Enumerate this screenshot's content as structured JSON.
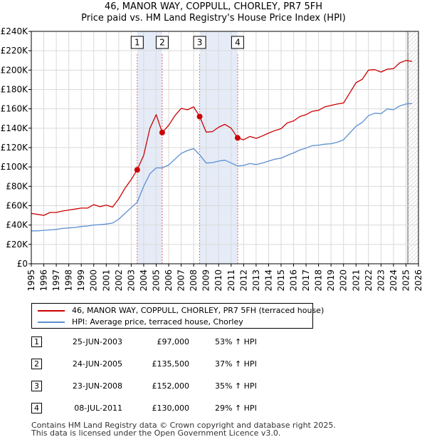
{
  "title_line1": "46, MANOR WAY, COPPULL, CHORLEY, PR7 5FH",
  "title_line2": "Price paid vs. HM Land Registry's House Price Index (HPI)",
  "chart_data": {
    "type": "line",
    "title": "46, MANOR WAY, COPPULL, CHORLEY, PR7 5FH — Price paid vs. HM Land Registry's House Price Index (HPI)",
    "xlim": [
      1995,
      2026
    ],
    "ylim": [
      0,
      240000
    ],
    "x_ticks": [
      1995,
      1996,
      1997,
      1998,
      1999,
      2000,
      2001,
      2002,
      2003,
      2004,
      2005,
      2006,
      2007,
      2008,
      2009,
      2010,
      2011,
      2012,
      2013,
      2014,
      2015,
      2016,
      2017,
      2018,
      2019,
      2020,
      2021,
      2022,
      2023,
      2024,
      2025,
      2026
    ],
    "y_ticks": [
      0,
      20000,
      40000,
      60000,
      80000,
      100000,
      120000,
      140000,
      160000,
      180000,
      200000,
      220000,
      240000
    ],
    "y_tick_labels": [
      "£0",
      "£20K",
      "£40K",
      "£60K",
      "£80K",
      "£100K",
      "£120K",
      "£140K",
      "£160K",
      "£180K",
      "£200K",
      "£220K",
      "£240K"
    ],
    "grid": true,
    "shaded_periods": [
      [
        2003.48,
        2005.48
      ],
      [
        2008.48,
        2011.52
      ]
    ],
    "forecast_start": 2025.15,
    "series": [
      {
        "name": "46, MANOR WAY, COPPULL, CHORLEY, PR7 5FH (terraced house)",
        "color": "#cc0000",
        "x": [
          1995.0,
          1995.5,
          1996.0,
          1996.5,
          1997.0,
          1997.5,
          1998.0,
          1998.5,
          1999.0,
          1999.5,
          2000.0,
          2000.5,
          2001.0,
          2001.5,
          2002.0,
          2002.5,
          2003.0,
          2003.48,
          2004.0,
          2004.5,
          2005.0,
          2005.48,
          2006.0,
          2006.5,
          2007.0,
          2007.5,
          2008.0,
          2008.48,
          2009.0,
          2009.5,
          2010.0,
          2010.5,
          2011.0,
          2011.52,
          2012.0,
          2012.5,
          2013.0,
          2013.5,
          2014.0,
          2014.5,
          2015.0,
          2015.5,
          2016.0,
          2016.5,
          2017.0,
          2017.5,
          2018.0,
          2018.5,
          2019.0,
          2019.5,
          2020.0,
          2020.5,
          2021.0,
          2021.5,
          2022.0,
          2022.5,
          2023.0,
          2023.5,
          2024.0,
          2024.5,
          2025.0,
          2025.5
        ],
        "values": [
          52000,
          51000,
          50000,
          53000,
          53000,
          54500,
          55500,
          56500,
          57500,
          57500,
          61000,
          59000,
          60500,
          58500,
          67000,
          78000,
          87000,
          97000,
          112000,
          140000,
          154000,
          135500,
          143000,
          153000,
          160500,
          159000,
          162000,
          152000,
          136000,
          136500,
          141000,
          144000,
          140000,
          130000,
          128000,
          131500,
          129500,
          132000,
          135000,
          137500,
          139500,
          145500,
          147500,
          152000,
          154000,
          157500,
          158500,
          162000,
          163500,
          165000,
          166000,
          176500,
          187000,
          190500,
          200000,
          200500,
          198000,
          201000,
          201500,
          207500,
          210000,
          209000
        ]
      },
      {
        "name": "HPI: Average price, terraced house, Chorley",
        "color": "#5b8fd0",
        "x": [
          1995.0,
          1995.5,
          1996.0,
          1996.5,
          1997.0,
          1997.5,
          1998.0,
          1998.5,
          1999.0,
          1999.5,
          2000.0,
          2000.5,
          2001.0,
          2001.5,
          2002.0,
          2002.5,
          2003.0,
          2003.48,
          2004.0,
          2004.5,
          2005.0,
          2005.48,
          2006.0,
          2006.5,
          2007.0,
          2007.5,
          2008.0,
          2008.48,
          2009.0,
          2009.5,
          2010.0,
          2010.5,
          2011.0,
          2011.52,
          2012.0,
          2012.5,
          2013.0,
          2013.5,
          2014.0,
          2014.5,
          2015.0,
          2015.5,
          2016.0,
          2016.5,
          2017.0,
          2017.5,
          2018.0,
          2018.5,
          2019.0,
          2019.5,
          2020.0,
          2020.5,
          2021.0,
          2021.5,
          2022.0,
          2022.5,
          2023.0,
          2023.5,
          2024.0,
          2024.5,
          2025.0,
          2025.5
        ],
        "values": [
          34000,
          34000,
          34500,
          35000,
          35500,
          36500,
          37000,
          37500,
          38500,
          39000,
          40000,
          40500,
          41000,
          42000,
          46000,
          52000,
          58000,
          63500,
          80000,
          93000,
          99000,
          99000,
          102000,
          108000,
          114000,
          117000,
          119000,
          112500,
          104000,
          104500,
          106000,
          107000,
          104000,
          101000,
          101500,
          103500,
          102500,
          104000,
          106000,
          108000,
          109000,
          112000,
          114500,
          117500,
          119500,
          122000,
          122500,
          123500,
          124000,
          125500,
          128000,
          135000,
          142000,
          146000,
          153000,
          155500,
          155000,
          160000,
          159000,
          163000,
          165000,
          165500
        ]
      }
    ],
    "sale_markers": [
      {
        "id": "1",
        "x": 2003.48,
        "value": 97000
      },
      {
        "id": "2",
        "x": 2005.48,
        "value": 135500
      },
      {
        "id": "3",
        "x": 2008.48,
        "value": 152000
      },
      {
        "id": "4",
        "x": 2011.52,
        "value": 130000
      }
    ]
  },
  "legend": {
    "property_label": "46, MANOR WAY, COPPULL, CHORLEY, PR7 5FH (terraced house)",
    "hpi_label": "HPI: Average price, terraced house, Chorley",
    "property_color": "#cc0000",
    "hpi_color": "#5b8fd0"
  },
  "sales": [
    {
      "num": "1",
      "date": "25-JUN-2003",
      "price": "£97,000",
      "hpi": "53% ↑ HPI"
    },
    {
      "num": "2",
      "date": "24-JUN-2005",
      "price": "£135,500",
      "hpi": "37% ↑ HPI"
    },
    {
      "num": "3",
      "date": "23-JUN-2008",
      "price": "£152,000",
      "hpi": "35% ↑ HPI"
    },
    {
      "num": "4",
      "date": "08-JUL-2011",
      "price": "£130,000",
      "hpi": "29% ↑ HPI"
    }
  ],
  "footer": {
    "line1": "Contains HM Land Registry data © Crown copyright and database right 2025.",
    "line2": "This data is licensed under the Open Government Licence v3.0."
  }
}
